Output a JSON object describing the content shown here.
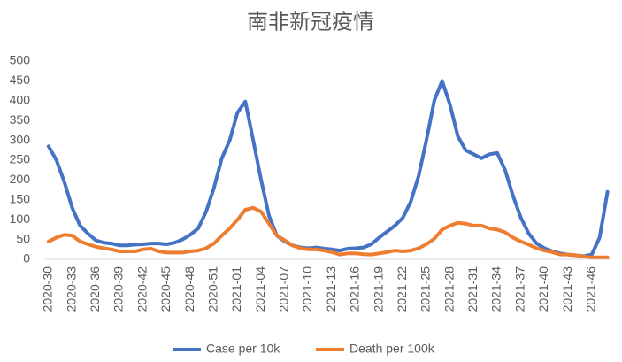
{
  "chart_data": {
    "type": "line",
    "title": "南非新冠疫情",
    "categories": [
      "2020-30",
      null,
      null,
      "2020-33",
      null,
      null,
      "2020-36",
      null,
      null,
      "2020-39",
      null,
      null,
      "2020-42",
      null,
      null,
      "2020-45",
      null,
      null,
      "2020-48",
      null,
      null,
      "2020-51",
      null,
      null,
      "2021-01",
      null,
      null,
      "2021-04",
      null,
      null,
      "2021-07",
      null,
      null,
      "2021-10",
      null,
      null,
      "2021-13",
      null,
      null,
      "2021-16",
      null,
      null,
      "2021-19",
      null,
      null,
      "2021-22",
      null,
      null,
      "2021-25",
      null,
      null,
      "2021-28",
      null,
      null,
      "2021-31",
      null,
      null,
      "2021-34",
      null,
      null,
      "2021-37",
      null,
      null,
      "2021-40",
      null,
      null,
      "2021-43",
      null,
      null,
      "2021-46",
      null,
      null
    ],
    "series": [
      {
        "name": "Case per 10k",
        "color": "#4472c4",
        "values": [
          285,
          250,
          195,
          130,
          85,
          65,
          48,
          42,
          40,
          35,
          35,
          37,
          38,
          40,
          40,
          38,
          42,
          50,
          62,
          78,
          120,
          180,
          255,
          300,
          370,
          398,
          300,
          200,
          110,
          60,
          45,
          35,
          30,
          28,
          30,
          27,
          25,
          22,
          27,
          28,
          30,
          38,
          55,
          70,
          85,
          105,
          145,
          210,
          300,
          400,
          450,
          390,
          310,
          275,
          265,
          255,
          265,
          268,
          225,
          160,
          105,
          65,
          40,
          28,
          20,
          15,
          12,
          10,
          8,
          12,
          55,
          170
        ]
      },
      {
        "name": "Death per 100k",
        "color": "#ed7d31",
        "values": [
          45,
          55,
          62,
          60,
          45,
          38,
          32,
          28,
          25,
          20,
          20,
          20,
          25,
          27,
          20,
          17,
          17,
          17,
          20,
          22,
          28,
          40,
          60,
          78,
          100,
          125,
          130,
          120,
          90,
          60,
          48,
          35,
          28,
          25,
          25,
          22,
          18,
          12,
          15,
          15,
          13,
          12,
          15,
          18,
          22,
          20,
          22,
          28,
          38,
          52,
          75,
          85,
          92,
          90,
          85,
          85,
          78,
          75,
          68,
          55,
          45,
          37,
          28,
          22,
          18,
          12,
          12,
          10,
          7,
          5,
          5,
          5
        ]
      }
    ],
    "ylim": [
      0,
      500
    ],
    "yticks": [
      0,
      50,
      100,
      150,
      200,
      250,
      300,
      350,
      400,
      450,
      500
    ],
    "legend": "bottom"
  }
}
